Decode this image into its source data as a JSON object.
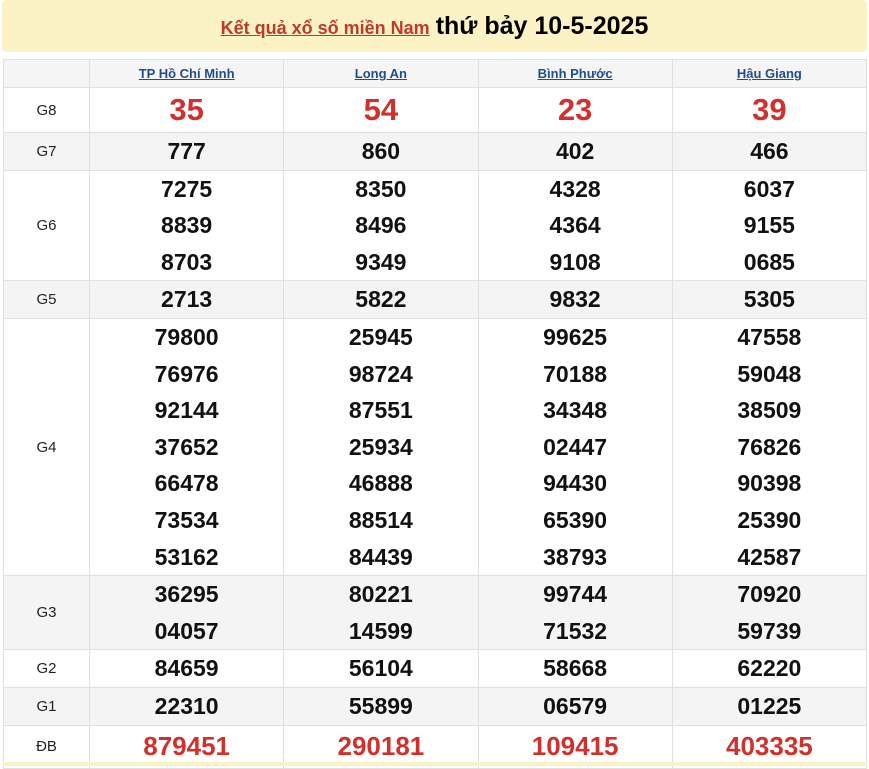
{
  "header": {
    "link": "Kết quả xổ số miền Nam",
    "date": "thứ bảy 10-5-2025"
  },
  "provinces": [
    "TP Hồ Chí Minh",
    "Long An",
    "Bình Phước",
    "Hậu Giang"
  ],
  "rows": [
    {
      "label": "G8",
      "values": [
        [
          "35"
        ],
        [
          "54"
        ],
        [
          "23"
        ],
        [
          "39"
        ]
      ]
    },
    {
      "label": "G7",
      "values": [
        [
          "777"
        ],
        [
          "860"
        ],
        [
          "402"
        ],
        [
          "466"
        ]
      ]
    },
    {
      "label": "G6",
      "values": [
        [
          "7275",
          "8839",
          "8703"
        ],
        [
          "8350",
          "8496",
          "9349"
        ],
        [
          "4328",
          "4364",
          "9108"
        ],
        [
          "6037",
          "9155",
          "0685"
        ]
      ]
    },
    {
      "label": "G5",
      "values": [
        [
          "2713"
        ],
        [
          "5822"
        ],
        [
          "9832"
        ],
        [
          "5305"
        ]
      ]
    },
    {
      "label": "G4",
      "values": [
        [
          "79800",
          "76976",
          "92144",
          "37652",
          "66478",
          "73534",
          "53162"
        ],
        [
          "25945",
          "98724",
          "87551",
          "25934",
          "46888",
          "88514",
          "84439"
        ],
        [
          "99625",
          "70188",
          "34348",
          "02447",
          "94430",
          "65390",
          "38793"
        ],
        [
          "47558",
          "59048",
          "38509",
          "76826",
          "90398",
          "25390",
          "42587"
        ]
      ]
    },
    {
      "label": "G3",
      "values": [
        [
          "36295",
          "04057"
        ],
        [
          "80221",
          "14599"
        ],
        [
          "99744",
          "71532"
        ],
        [
          "70920",
          "59739"
        ]
      ]
    },
    {
      "label": "G2",
      "values": [
        [
          "84659"
        ],
        [
          "56104"
        ],
        [
          "58668"
        ],
        [
          "62220"
        ]
      ]
    },
    {
      "label": "G1",
      "values": [
        [
          "22310"
        ],
        [
          "55899"
        ],
        [
          "06579"
        ],
        [
          "01225"
        ]
      ]
    },
    {
      "label": "ĐB",
      "values": [
        [
          "879451"
        ],
        [
          "290181"
        ],
        [
          "109415"
        ],
        [
          "403335"
        ]
      ]
    }
  ],
  "colors": {
    "accent": "#d0312d",
    "link": "#1f4e8c",
    "header_bg": "#fbf3c6"
  }
}
